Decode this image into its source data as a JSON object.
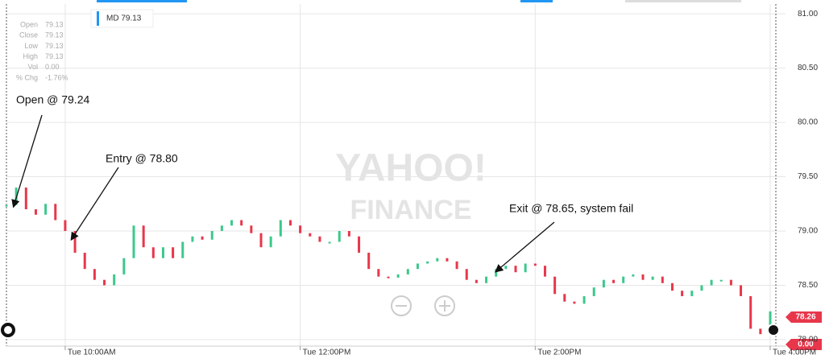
{
  "chart_data": {
    "type": "candlestick",
    "symbol": "MD 79.13",
    "info": [
      {
        "label": "Open",
        "value": "79.13"
      },
      {
        "label": "Close",
        "value": "79.13"
      },
      {
        "label": "Low",
        "value": "79.13"
      },
      {
        "label": "High",
        "value": "79.13"
      },
      {
        "label": "Vol",
        "value": "0.00"
      },
      {
        "label": "% Chg",
        "value": "-1.76%"
      }
    ],
    "watermark": [
      "YAHOO!",
      "FINANCE"
    ],
    "annotations": [
      "Open @ 79.24",
      "Entry @ 78.80",
      "Exit @ 78.65, system fail"
    ],
    "tags": [
      "78.26",
      "0.00"
    ],
    "up_color": "#3cc88c",
    "down_color": "#e8374b",
    "x": [
      570,
      575,
      580,
      585,
      590,
      595,
      600,
      605,
      610,
      615,
      620,
      625,
      630,
      635,
      640,
      645,
      650,
      655,
      660,
      665,
      670,
      675,
      680,
      685,
      690,
      695,
      700,
      705,
      710,
      715,
      720,
      725,
      730,
      735,
      740,
      745,
      750,
      755,
      760,
      765,
      770,
      775,
      780,
      785,
      790,
      795,
      800,
      805,
      810,
      815,
      820,
      825,
      830,
      835,
      840,
      845,
      850,
      855,
      860,
      865,
      870,
      875,
      880,
      885,
      890,
      895,
      900,
      905,
      910,
      915,
      920,
      925,
      930,
      935,
      940,
      945,
      950,
      955,
      960
    ],
    "values": [
      79.24,
      79.4,
      79.2,
      79.15,
      79.25,
      79.1,
      79.0,
      78.8,
      78.65,
      78.55,
      78.5,
      78.6,
      78.75,
      79.05,
      78.85,
      78.75,
      78.85,
      78.75,
      78.9,
      78.95,
      78.92,
      79.0,
      79.05,
      79.1,
      79.05,
      78.98,
      78.85,
      78.95,
      79.1,
      79.05,
      78.98,
      78.95,
      78.9,
      78.9,
      79.0,
      78.95,
      78.8,
      78.65,
      78.58,
      78.57,
      78.6,
      78.65,
      78.7,
      78.72,
      78.75,
      78.72,
      78.65,
      78.55,
      78.52,
      78.58,
      78.65,
      78.68,
      78.62,
      78.7,
      78.68,
      78.58,
      78.42,
      78.35,
      78.33,
      78.4,
      78.48,
      78.55,
      78.52,
      78.58,
      78.6,
      78.55,
      78.58,
      78.52,
      78.45,
      78.4,
      78.45,
      78.5,
      78.55,
      78.55,
      78.5,
      78.4,
      78.1,
      78.05,
      78.26
    ],
    "xlim": [
      570,
      960
    ],
    "xticks": [
      {
        "value": 600,
        "label": "Tue 10:00AM"
      },
      {
        "value": 720,
        "label": "Tue 12:00PM"
      },
      {
        "value": 840,
        "label": "Tue 2:00PM"
      },
      {
        "value": 960,
        "label": "Tue 4:00PM"
      }
    ],
    "ylim": [
      77.94,
      81.09
    ],
    "yticks": [
      {
        "value": 78,
        "label": "78.00"
      },
      {
        "value": 78.5,
        "label": "78.50"
      },
      {
        "value": 79,
        "label": "79.00"
      },
      {
        "value": 79.5,
        "label": "79.50"
      },
      {
        "value": 80,
        "label": "80.00"
      },
      {
        "value": 80.5,
        "label": "80.50"
      },
      {
        "value": 81,
        "label": "81.00"
      }
    ],
    "grid": true
  }
}
